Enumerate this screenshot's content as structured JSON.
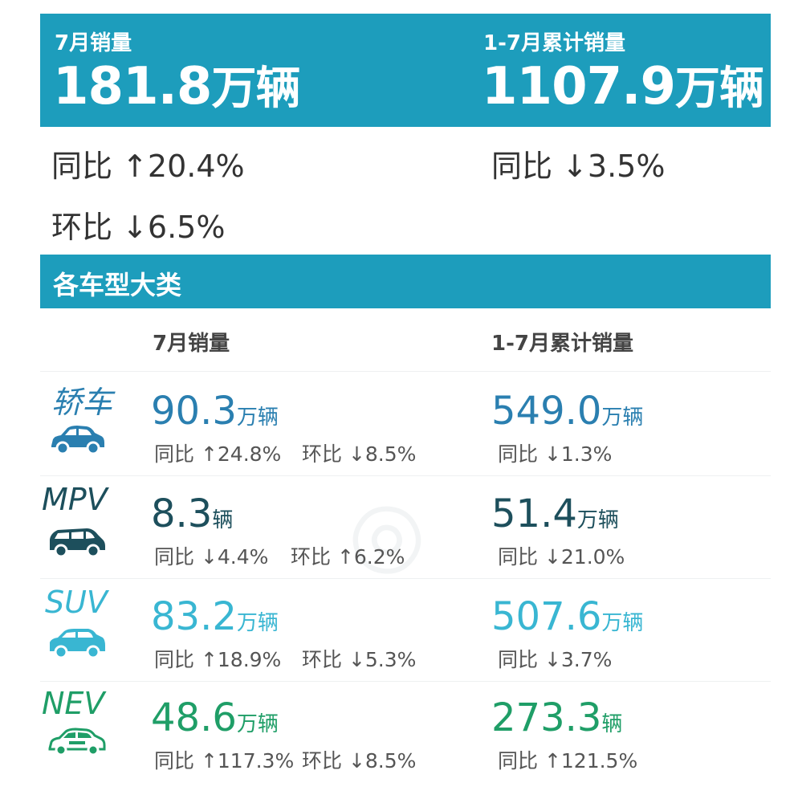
{
  "header": {
    "july": {
      "label": "7月销量",
      "value": "181.8",
      "unit": "万辆"
    },
    "ytd": {
      "label": "1-7月累计销量",
      "value": "1107.9",
      "unit": "万辆"
    }
  },
  "growth": {
    "july_yoy": "同比 ↑20.4%",
    "july_mom": "环比 ↓6.5%",
    "ytd_yoy": "同比 ↓3.5%"
  },
  "section": {
    "title": "各车型大类"
  },
  "columns": {
    "july": "7月销量",
    "ytd": "1-7月累计销量"
  },
  "colors": {
    "banner": "#1d9dbc",
    "sedan": "#2a7fb0",
    "mpv": "#1d4f5c",
    "suv": "#39b6d2",
    "nev": "#1f9e67"
  },
  "rows": [
    {
      "name": "轿车",
      "icon": "sedan-icon",
      "july_value": "90.3",
      "july_unit": "万辆",
      "july_yoy": "同比 ↑24.8%",
      "july_mom": "环比 ↓8.5%",
      "ytd_value": "549.0",
      "ytd_unit": "万辆",
      "ytd_yoy": "同比 ↓1.3%"
    },
    {
      "name": "MPV",
      "icon": "mpv-icon",
      "july_value": "8.3",
      "july_unit": "辆",
      "july_yoy": "同比 ↓4.4%",
      "july_mom": "环比 ↑6.2%",
      "ytd_value": "51.4",
      "ytd_unit": "万辆",
      "ytd_yoy": "同比 ↓21.0%"
    },
    {
      "name": "SUV",
      "icon": "suv-icon",
      "july_value": "83.2",
      "july_unit": "万辆",
      "july_yoy": "同比 ↑18.9%",
      "july_mom": "环比 ↓5.3%",
      "ytd_value": "507.6",
      "ytd_unit": "万辆",
      "ytd_yoy": "同比 ↓3.7%"
    },
    {
      "name": "NEV",
      "icon": "nev-icon",
      "july_value": "48.6",
      "july_unit": "万辆",
      "july_yoy": "同比 ↑117.3%",
      "july_mom": "环比 ↓8.5%",
      "ytd_value": "273.3",
      "ytd_unit": "辆",
      "ytd_yoy": "同比 ↑121.5%"
    }
  ]
}
